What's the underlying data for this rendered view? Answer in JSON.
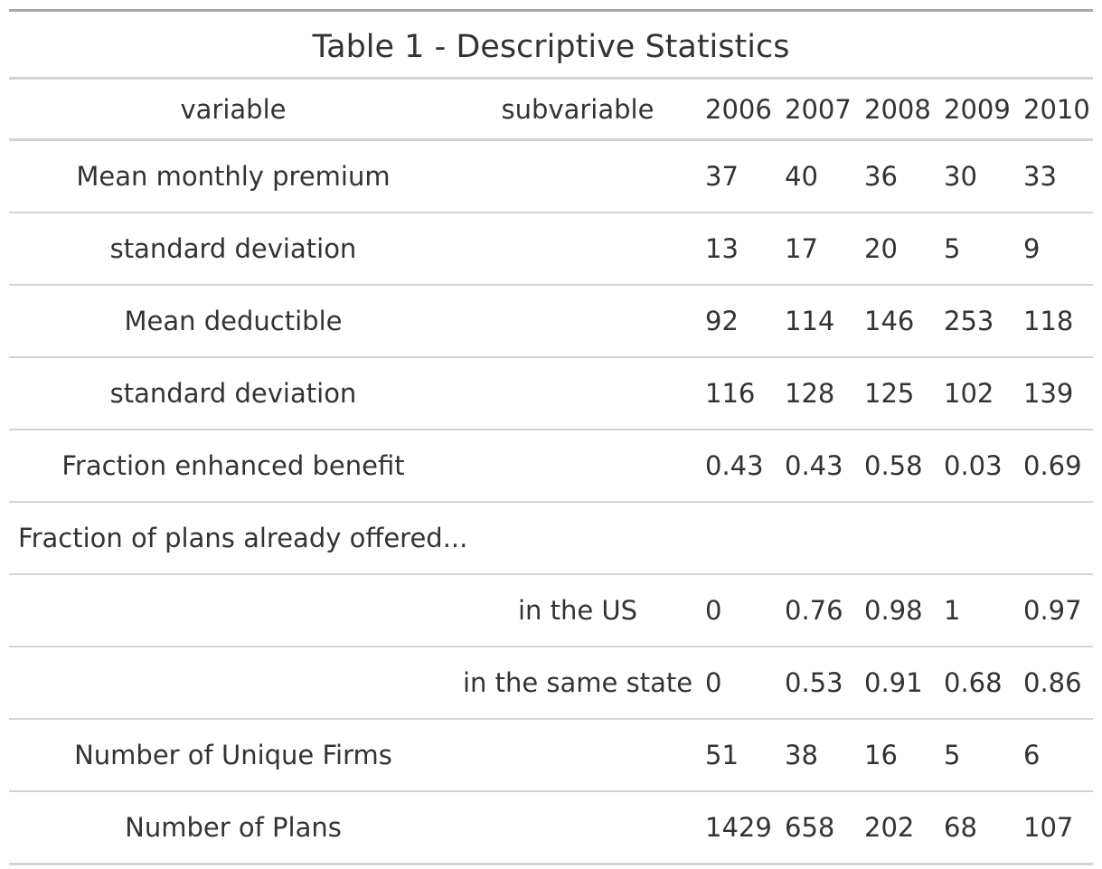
{
  "title": "Table 1 - Descriptive Statistics",
  "columns": [
    "variable",
    "subvariable",
    "2006",
    "2007",
    "2008",
    "2009",
    "2010"
  ],
  "rows": [
    {
      "variable": "Mean monthly premium",
      "subvariable": "",
      "values": [
        "37",
        "40",
        "36",
        "30",
        "33"
      ]
    },
    {
      "variable": "standard deviation",
      "subvariable": "",
      "values": [
        "13",
        "17",
        "20",
        "5",
        "9"
      ]
    },
    {
      "variable": "Mean deductible",
      "subvariable": "",
      "values": [
        "92",
        "114",
        "146",
        "253",
        "118"
      ]
    },
    {
      "variable": "standard deviation",
      "subvariable": "",
      "values": [
        "116",
        "128",
        "125",
        "102",
        "139"
      ]
    },
    {
      "variable": "Fraction enhanced benefit",
      "subvariable": "",
      "values": [
        "0.43",
        "0.43",
        "0.58",
        "0.03",
        "0.69"
      ]
    },
    {
      "variable": "Fraction of plans already offered...",
      "subvariable": "",
      "values": [
        "",
        "",
        "",
        "",
        ""
      ]
    },
    {
      "variable": "",
      "subvariable": "in the US",
      "values": [
        "0",
        "0.76",
        "0.98",
        "1",
        "0.97"
      ]
    },
    {
      "variable": "",
      "subvariable": "in the same state",
      "values": [
        "0",
        "0.53",
        "0.91",
        "0.68",
        "0.86"
      ]
    },
    {
      "variable": "Number of Unique Firms",
      "subvariable": "",
      "values": [
        "51",
        "38",
        "16",
        "5",
        "6"
      ]
    },
    {
      "variable": "Number of Plans",
      "subvariable": "",
      "values": [
        "1429",
        "658",
        "202",
        "68",
        "107"
      ]
    }
  ]
}
